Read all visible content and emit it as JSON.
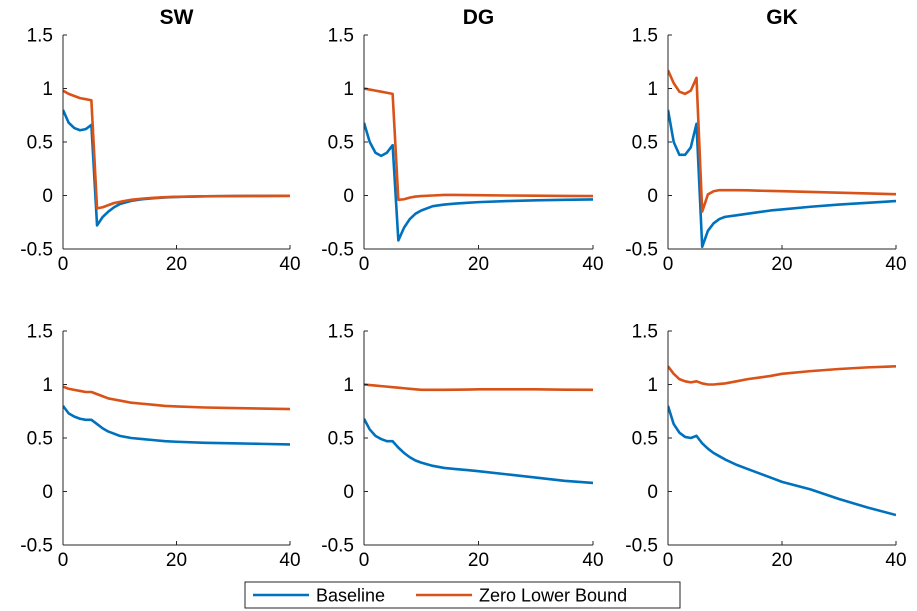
{
  "colors": {
    "baseline": "#0072BD",
    "zlb": "#D95319",
    "axis": "#262626",
    "background": "#ffffff"
  },
  "legend": {
    "items": [
      {
        "label": "Baseline",
        "color": "#0072BD"
      },
      {
        "label": "Zero Lower Bound",
        "color": "#D95319"
      }
    ]
  },
  "chart_data": [
    {
      "type": "line",
      "title": "SW",
      "xlim": [
        0,
        40
      ],
      "ylim": [
        -0.5,
        1.5
      ],
      "xticks": [
        "0",
        "20",
        "40"
      ],
      "yticks": [
        "-0.5",
        "0",
        "0.5",
        "1",
        "1.5"
      ],
      "series": [
        {
          "name": "Baseline",
          "x": [
            0,
            1,
            2,
            3,
            4,
            5,
            6,
            7,
            8,
            9,
            10,
            12,
            14,
            16,
            18,
            20,
            25,
            30,
            35,
            40
          ],
          "values": [
            0.8,
            0.68,
            0.63,
            0.61,
            0.62,
            0.66,
            -0.28,
            -0.2,
            -0.15,
            -0.11,
            -0.08,
            -0.05,
            -0.035,
            -0.025,
            -0.018,
            -0.013,
            -0.008,
            -0.005,
            -0.004,
            -0.003
          ]
        },
        {
          "name": "Zero Lower Bound",
          "x": [
            0,
            1,
            2,
            3,
            4,
            5,
            6,
            7,
            8,
            9,
            10,
            12,
            14,
            16,
            18,
            20,
            25,
            30,
            35,
            40
          ],
          "values": [
            0.98,
            0.95,
            0.93,
            0.91,
            0.9,
            0.89,
            -0.12,
            -0.11,
            -0.09,
            -0.07,
            -0.06,
            -0.04,
            -0.03,
            -0.022,
            -0.016,
            -0.012,
            -0.007,
            -0.005,
            -0.004,
            -0.003
          ]
        }
      ]
    },
    {
      "type": "line",
      "title": "DG",
      "xlim": [
        0,
        40
      ],
      "ylim": [
        -0.5,
        1.5
      ],
      "xticks": [
        "0",
        "20",
        "40"
      ],
      "yticks": [
        "-0.5",
        "0",
        "0.5",
        "1",
        "1.5"
      ],
      "series": [
        {
          "name": "Baseline",
          "x": [
            0,
            1,
            2,
            3,
            4,
            5,
            6,
            7,
            8,
            9,
            10,
            12,
            14,
            16,
            18,
            20,
            25,
            30,
            35,
            40
          ],
          "values": [
            0.68,
            0.5,
            0.4,
            0.37,
            0.4,
            0.47,
            -0.42,
            -0.3,
            -0.22,
            -0.17,
            -0.14,
            -0.1,
            -0.085,
            -0.075,
            -0.068,
            -0.062,
            -0.052,
            -0.045,
            -0.04,
            -0.037
          ]
        },
        {
          "name": "Zero Lower Bound",
          "x": [
            0,
            1,
            2,
            3,
            4,
            5,
            6,
            7,
            8,
            9,
            10,
            12,
            14,
            16,
            18,
            20,
            25,
            30,
            35,
            40
          ],
          "values": [
            1.0,
            0.99,
            0.98,
            0.97,
            0.96,
            0.95,
            -0.04,
            -0.035,
            -0.02,
            -0.01,
            -0.005,
            0.0,
            0.005,
            0.005,
            0.004,
            0.003,
            0.0,
            -0.002,
            -0.004,
            -0.005
          ]
        }
      ]
    },
    {
      "type": "line",
      "title": "GK",
      "xlim": [
        0,
        40
      ],
      "ylim": [
        -0.5,
        1.5
      ],
      "xticks": [
        "0",
        "20",
        "40"
      ],
      "yticks": [
        "-0.5",
        "0",
        "0.5",
        "1",
        "1.5"
      ],
      "series": [
        {
          "name": "Baseline",
          "x": [
            0,
            1,
            2,
            3,
            4,
            5,
            6,
            7,
            8,
            9,
            10,
            12,
            14,
            16,
            18,
            20,
            25,
            30,
            35,
            40
          ],
          "values": [
            0.8,
            0.5,
            0.38,
            0.38,
            0.45,
            0.67,
            -0.48,
            -0.33,
            -0.26,
            -0.22,
            -0.2,
            -0.185,
            -0.17,
            -0.155,
            -0.14,
            -0.13,
            -0.105,
            -0.085,
            -0.068,
            -0.052
          ]
        },
        {
          "name": "Zero Lower Bound",
          "x": [
            0,
            1,
            2,
            3,
            4,
            5,
            6,
            7,
            8,
            9,
            10,
            12,
            14,
            16,
            18,
            20,
            25,
            30,
            35,
            40
          ],
          "values": [
            1.17,
            1.05,
            0.97,
            0.95,
            0.98,
            1.1,
            -0.15,
            0.01,
            0.04,
            0.05,
            0.05,
            0.05,
            0.048,
            0.045,
            0.043,
            0.04,
            0.033,
            0.026,
            0.019,
            0.012
          ]
        }
      ]
    },
    {
      "type": "line",
      "title": "",
      "xlim": [
        0,
        40
      ],
      "ylim": [
        -0.5,
        1.5
      ],
      "xticks": [
        "0",
        "20",
        "40"
      ],
      "yticks": [
        "-0.5",
        "0",
        "0.5",
        "1",
        "1.5"
      ],
      "series": [
        {
          "name": "Baseline",
          "x": [
            0,
            1,
            2,
            3,
            4,
            5,
            6,
            7,
            8,
            9,
            10,
            12,
            14,
            16,
            18,
            20,
            25,
            30,
            35,
            40
          ],
          "values": [
            0.8,
            0.73,
            0.7,
            0.68,
            0.67,
            0.67,
            0.63,
            0.59,
            0.56,
            0.54,
            0.52,
            0.5,
            0.49,
            0.48,
            0.47,
            0.465,
            0.455,
            0.45,
            0.445,
            0.44
          ]
        },
        {
          "name": "Zero Lower Bound",
          "x": [
            0,
            1,
            2,
            3,
            4,
            5,
            6,
            7,
            8,
            9,
            10,
            12,
            14,
            16,
            18,
            20,
            25,
            30,
            35,
            40
          ],
          "values": [
            0.98,
            0.96,
            0.95,
            0.94,
            0.93,
            0.93,
            0.91,
            0.89,
            0.87,
            0.86,
            0.85,
            0.83,
            0.82,
            0.81,
            0.8,
            0.795,
            0.785,
            0.78,
            0.775,
            0.77
          ]
        }
      ]
    },
    {
      "type": "line",
      "title": "",
      "xlim": [
        0,
        40
      ],
      "ylim": [
        -0.5,
        1.5
      ],
      "xticks": [
        "0",
        "20",
        "40"
      ],
      "yticks": [
        "-0.5",
        "0",
        "0.5",
        "1",
        "1.5"
      ],
      "series": [
        {
          "name": "Baseline",
          "x": [
            0,
            1,
            2,
            3,
            4,
            5,
            6,
            7,
            8,
            9,
            10,
            12,
            14,
            16,
            18,
            20,
            25,
            30,
            35,
            40
          ],
          "values": [
            0.68,
            0.58,
            0.52,
            0.49,
            0.47,
            0.47,
            0.41,
            0.36,
            0.32,
            0.29,
            0.27,
            0.24,
            0.22,
            0.21,
            0.2,
            0.19,
            0.16,
            0.13,
            0.1,
            0.08
          ]
        },
        {
          "name": "Zero Lower Bound",
          "x": [
            0,
            1,
            2,
            3,
            4,
            5,
            6,
            7,
            8,
            9,
            10,
            12,
            14,
            16,
            18,
            20,
            25,
            30,
            35,
            40
          ],
          "values": [
            1.0,
            0.995,
            0.99,
            0.985,
            0.98,
            0.975,
            0.97,
            0.965,
            0.96,
            0.955,
            0.95,
            0.95,
            0.95,
            0.952,
            0.953,
            0.955,
            0.955,
            0.955,
            0.952,
            0.95
          ]
        }
      ]
    },
    {
      "type": "line",
      "title": "",
      "xlim": [
        0,
        40
      ],
      "ylim": [
        -0.5,
        1.5
      ],
      "xticks": [
        "0",
        "20",
        "40"
      ],
      "yticks": [
        "-0.5",
        "0",
        "0.5",
        "1",
        "1.5"
      ],
      "series": [
        {
          "name": "Baseline",
          "x": [
            0,
            1,
            2,
            3,
            4,
            5,
            6,
            7,
            8,
            9,
            10,
            12,
            14,
            16,
            18,
            20,
            25,
            30,
            35,
            40
          ],
          "values": [
            0.8,
            0.63,
            0.55,
            0.51,
            0.5,
            0.52,
            0.45,
            0.4,
            0.36,
            0.33,
            0.3,
            0.25,
            0.21,
            0.17,
            0.13,
            0.09,
            0.02,
            -0.07,
            -0.15,
            -0.22
          ]
        },
        {
          "name": "Zero Lower Bound",
          "x": [
            0,
            1,
            2,
            3,
            4,
            5,
            6,
            7,
            8,
            9,
            10,
            12,
            14,
            16,
            18,
            20,
            25,
            30,
            35,
            40
          ],
          "values": [
            1.17,
            1.1,
            1.05,
            1.03,
            1.02,
            1.03,
            1.01,
            1.0,
            1.0,
            1.005,
            1.01,
            1.03,
            1.05,
            1.065,
            1.08,
            1.1,
            1.125,
            1.145,
            1.16,
            1.17
          ]
        }
      ]
    }
  ]
}
